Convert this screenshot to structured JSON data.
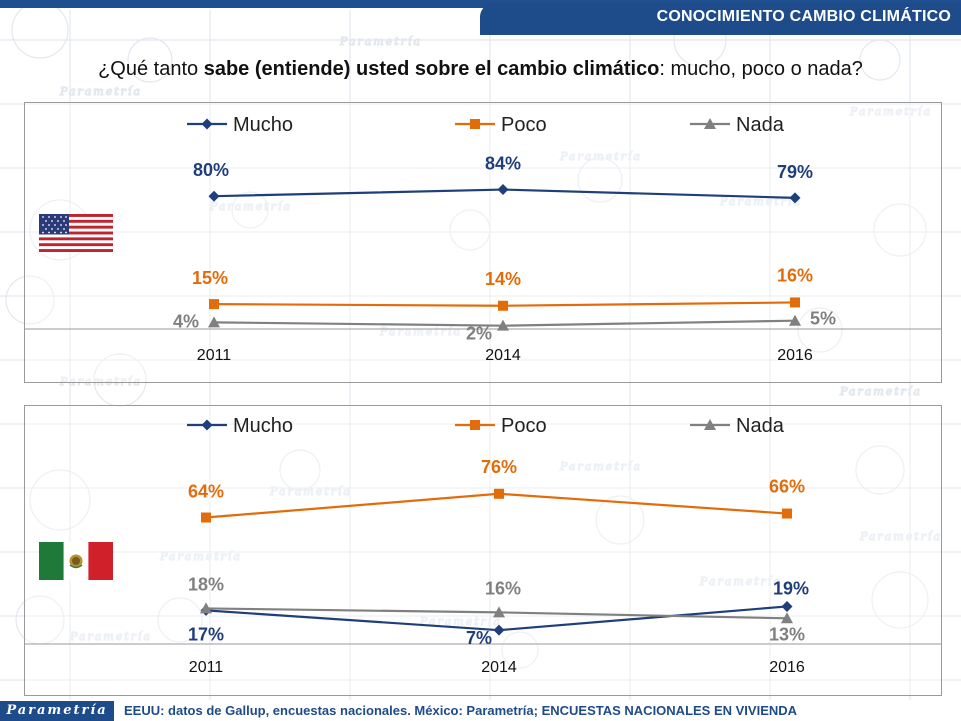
{
  "header": {
    "title": "CONOCIMIENTO CAMBIO CLIMÁTICO"
  },
  "question": {
    "pre": "¿Qué tanto ",
    "bold1": "sabe (entiende) usted sobre el cambio climático",
    "post": ": mucho, poco o nada?"
  },
  "footer": {
    "logo": "Parametría",
    "source": "EEUU: datos de Gallup, encuestas nacionales. México: Parametría; ENCUESTAS NACIONALES EN VIVIENDA"
  },
  "background": {
    "watermark": "Parametría"
  },
  "colors": {
    "mucho": "#1f3f7a",
    "poco": "#e36c0a",
    "nada": "#808080",
    "brand": "#1e4b8a"
  },
  "chart_data": [
    {
      "type": "line",
      "country_flag": "usa-flag",
      "x": [
        "2011",
        "2014",
        "2016"
      ],
      "ylim": [
        0,
        100
      ],
      "legend_position": "top",
      "series": [
        {
          "name": "Mucho",
          "color": "#1f3f7a",
          "marker": "diamond",
          "values": [
            80,
            84,
            79
          ],
          "labels": [
            "80%",
            "84%",
            "79%"
          ]
        },
        {
          "name": "Poco",
          "color": "#e36c0a",
          "marker": "square",
          "values": [
            15,
            14,
            16
          ],
          "labels": [
            "15%",
            "14%",
            "16%"
          ]
        },
        {
          "name": "Nada",
          "color": "#808080",
          "marker": "triangle",
          "values": [
            4,
            2,
            5
          ],
          "labels": [
            "4%",
            "2%",
            "5%"
          ]
        }
      ]
    },
    {
      "type": "line",
      "country_flag": "mexico-flag",
      "x": [
        "2011",
        "2014",
        "2016"
      ],
      "ylim": [
        0,
        85
      ],
      "legend_position": "top",
      "series": [
        {
          "name": "Mucho",
          "color": "#1f3f7a",
          "marker": "diamond",
          "values": [
            17,
            7,
            19
          ],
          "labels": [
            "17%",
            "7%",
            "19%"
          ]
        },
        {
          "name": "Poco",
          "color": "#e36c0a",
          "marker": "square",
          "values": [
            64,
            76,
            66
          ],
          "labels": [
            "64%",
            "76%",
            "66%"
          ]
        },
        {
          "name": "Nada",
          "color": "#808080",
          "marker": "triangle",
          "values": [
            18,
            16,
            13
          ],
          "labels": [
            "18%",
            "16%",
            "13%"
          ]
        }
      ]
    }
  ]
}
